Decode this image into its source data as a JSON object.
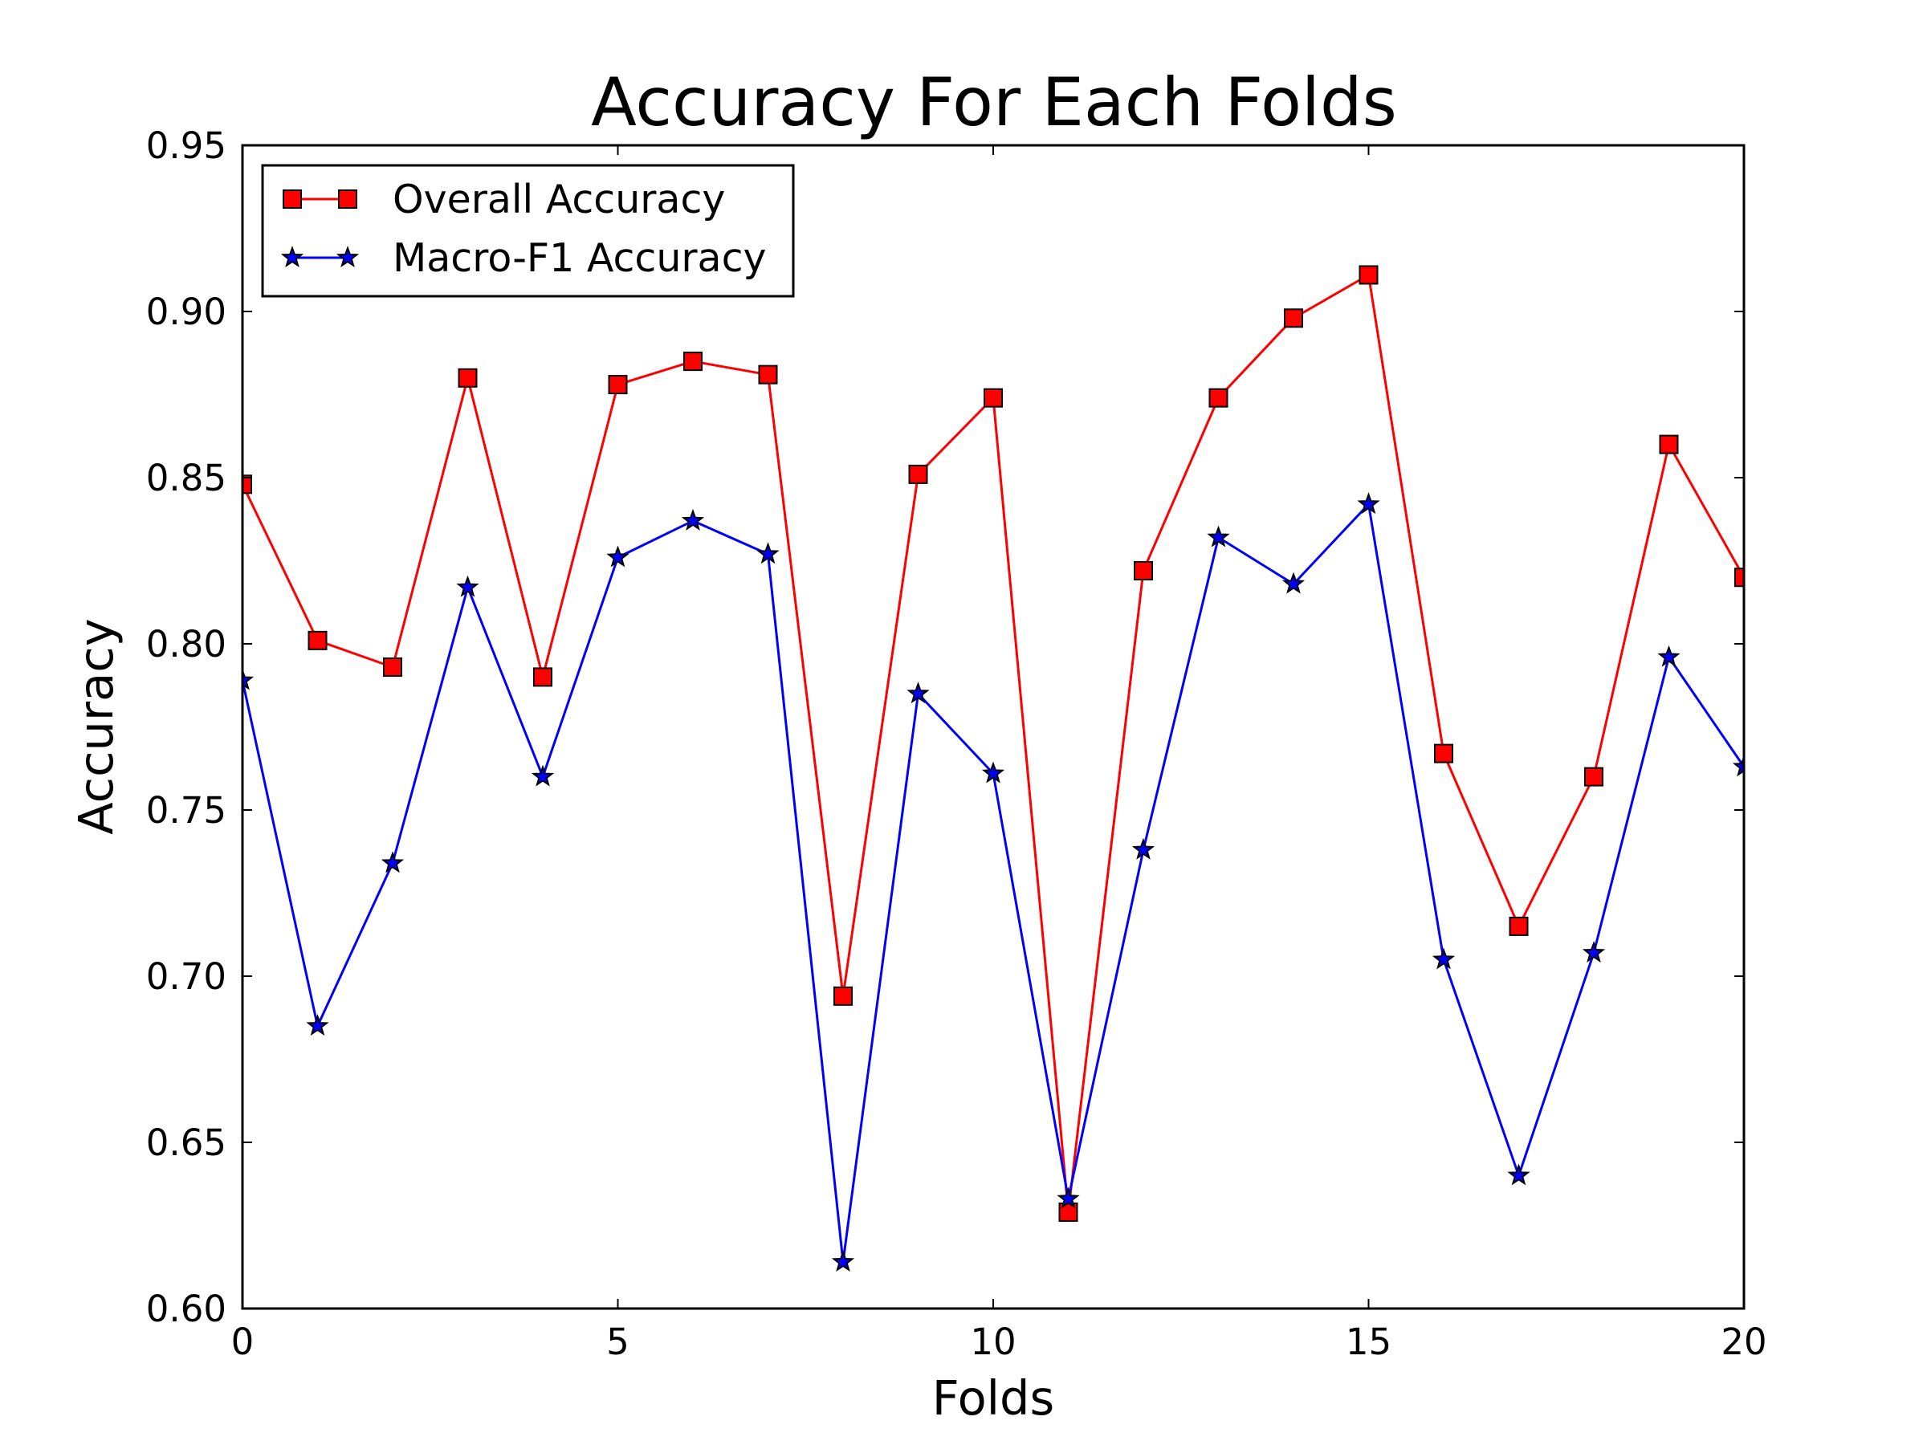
{
  "chart_data": {
    "type": "line",
    "title": "Accuracy For Each Folds",
    "xlabel": "Folds",
    "ylabel": "Accuracy",
    "xlim": [
      0,
      20
    ],
    "ylim": [
      0.6,
      0.95
    ],
    "xticks": [
      "0",
      "5",
      "10",
      "15",
      "20"
    ],
    "yticks": [
      "0.60",
      "0.65",
      "0.70",
      "0.75",
      "0.80",
      "0.85",
      "0.90",
      "0.95"
    ],
    "grid": false,
    "legend_position": "upper-left",
    "x": [
      0,
      1,
      2,
      3,
      4,
      5,
      6,
      7,
      8,
      9,
      10,
      11,
      12,
      13,
      14,
      15,
      16,
      17,
      18,
      19,
      20
    ],
    "series": [
      {
        "name": "Overall Accuracy",
        "color": "#ff0000",
        "marker": "square",
        "values": [
          0.848,
          0.801,
          0.793,
          0.88,
          0.79,
          0.878,
          0.885,
          0.881,
          0.694,
          0.851,
          0.874,
          0.629,
          0.822,
          0.874,
          0.898,
          0.911,
          0.767,
          0.715,
          0.76,
          0.86,
          0.82
        ]
      },
      {
        "name": "Macro-F1 Accuracy",
        "color": "#0000ff",
        "marker": "star",
        "values": [
          0.789,
          0.685,
          0.734,
          0.817,
          0.76,
          0.826,
          0.837,
          0.827,
          0.614,
          0.785,
          0.761,
          0.633,
          0.738,
          0.832,
          0.818,
          0.842,
          0.705,
          0.64,
          0.707,
          0.796,
          0.763
        ]
      }
    ]
  }
}
